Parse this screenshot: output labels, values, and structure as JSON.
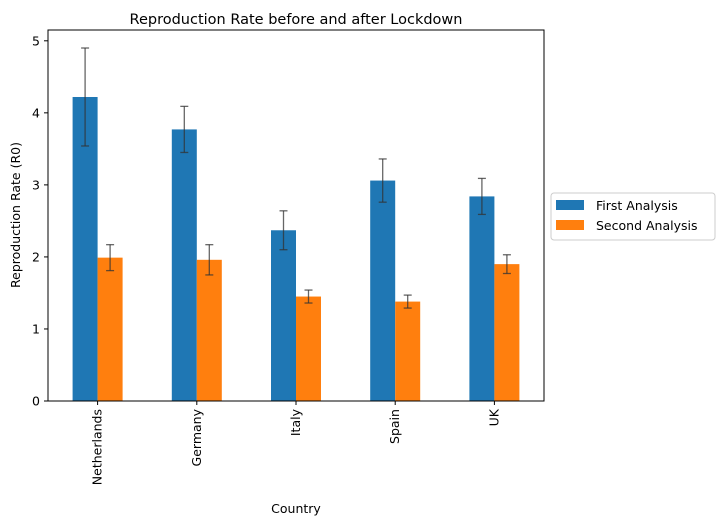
{
  "chart_data": {
    "type": "bar",
    "title": "Reproduction Rate before and after Lockdown",
    "xlabel": "Country",
    "ylabel": "Reproduction Rate (R0)",
    "categories": [
      "Netherlands",
      "Germany",
      "Italy",
      "Spain",
      "UK"
    ],
    "ylim": [
      0,
      5.15
    ],
    "yticks": [
      "0",
      "1",
      "2",
      "3",
      "4",
      "5"
    ],
    "grid": false,
    "legend_position": "center-right outside",
    "series": [
      {
        "name": "First Analysis",
        "color": "#1f77b4",
        "values": [
          4.22,
          3.77,
          2.37,
          3.06,
          2.84
        ],
        "error": [
          0.68,
          0.32,
          0.27,
          0.3,
          0.25
        ]
      },
      {
        "name": "Second Analysis",
        "color": "#ff7f0e",
        "values": [
          1.99,
          1.96,
          1.45,
          1.38,
          1.9
        ],
        "error": [
          0.18,
          0.21,
          0.09,
          0.09,
          0.13
        ]
      }
    ]
  }
}
